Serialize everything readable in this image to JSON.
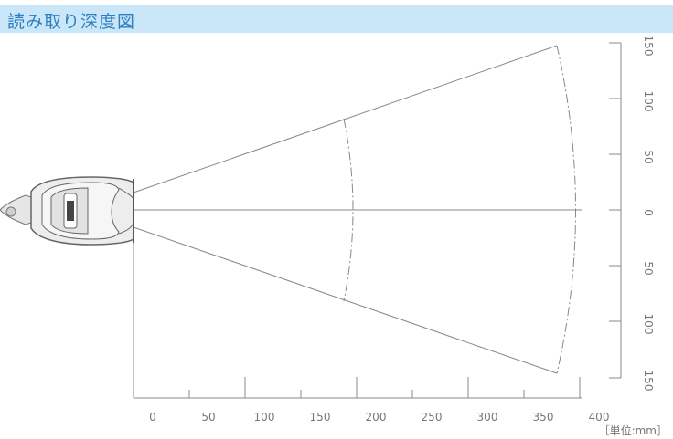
{
  "header": {
    "title": "読み取り深度図"
  },
  "x_axis": {
    "ticks": [
      "0",
      "50",
      "100",
      "150",
      "200",
      "250",
      "300",
      "350",
      "400"
    ]
  },
  "y_axis": {
    "ticks": [
      "150",
      "100",
      "50",
      "0",
      "50",
      "100",
      "150"
    ]
  },
  "unit": "［単位:mm］",
  "device": {
    "icon": "barcode-scanner-icon"
  },
  "colors": {
    "title_bg": "#c9e7f8",
    "title_text": "#2f7fc0",
    "lines": "#777777"
  }
}
